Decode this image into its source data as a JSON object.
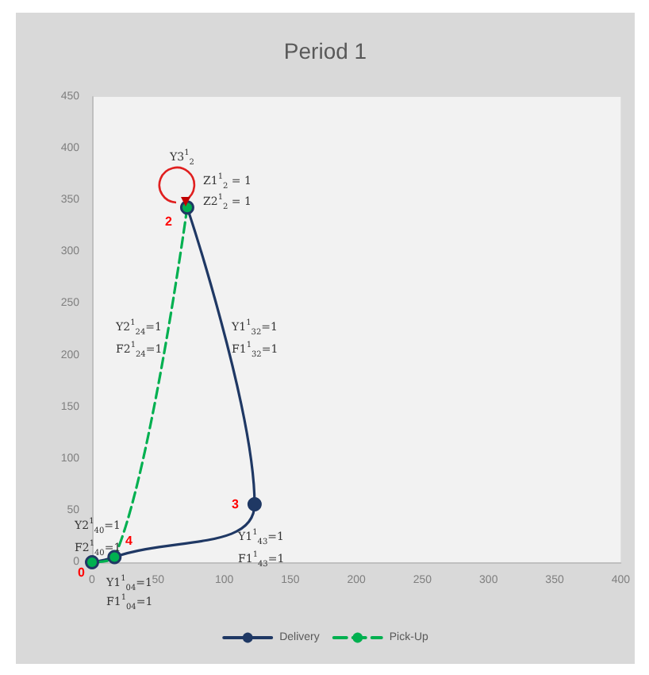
{
  "chart_data": {
    "type": "line",
    "title": "Period 1",
    "xlim": [
      0,
      400
    ],
    "xticks": [
      0,
      50,
      100,
      150,
      200,
      250,
      300,
      350,
      400
    ],
    "ylim": [
      0,
      450
    ],
    "yticks": [
      0,
      50,
      100,
      150,
      200,
      250,
      300,
      350,
      400,
      450
    ],
    "grid": false,
    "legend": "bottom",
    "marker": "circle",
    "series": [
      {
        "name": "Delivery",
        "color": "#1f3864",
        "line_style": "solid",
        "x": [
          0,
          17,
          123,
          72
        ],
        "values": [
          0,
          5,
          56,
          343
        ]
      },
      {
        "name": "Pick-Up",
        "color": "#00b050",
        "line_style": "dashed",
        "x": [
          72,
          17,
          0
        ],
        "values": [
          343,
          5,
          0
        ]
      }
    ],
    "annotations": [
      "Y3$^{1}$$_{2}$",
      "Z1$^{1}$$_{2}$ = 1",
      "Z2$^{1}$$_{2}$ = 1",
      "2",
      "Y2$^{1}$$_{24}$=1",
      "F2$^{1}$$_{24}$=1",
      "Y1$^{1}$$_{32}$=1",
      "F1$^{1}$$_{32}$=1",
      "3",
      "Y1$^{1}$$_{43}$=1",
      "F1$^{1}$$_{43}$=1",
      "Y2$^{1}$$_{40}$=1",
      "F2$^{1}$$_{40}$=1",
      "4",
      "0",
      "Y1$^{1}$$_{04}$=1",
      "F1$^{1}$$_{04}$=1"
    ]
  }
}
